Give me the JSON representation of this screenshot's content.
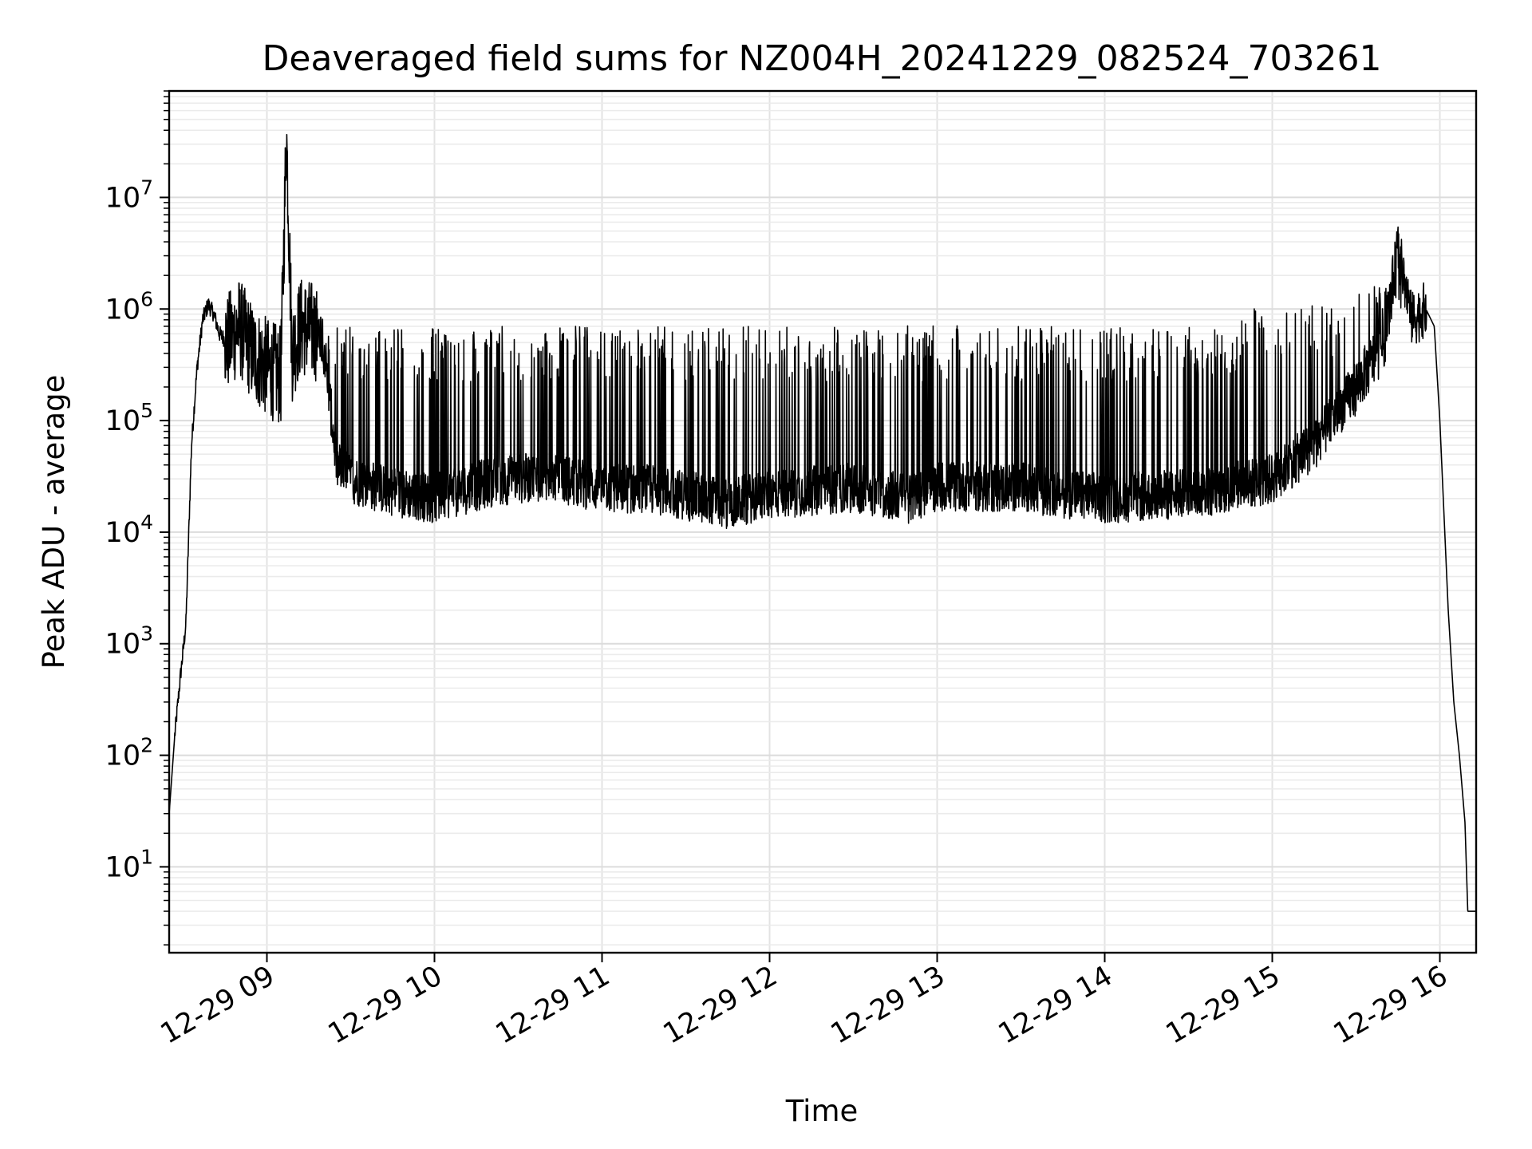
{
  "chart_data": {
    "type": "line",
    "title": "Deaveraged field sums for NZ004H_20241229_082524_703261",
    "xlabel": "Time",
    "ylabel": "Peak ADU - average",
    "yscale": "log",
    "grid": true,
    "xlim": [
      "12-29 08:25",
      "12-29 16:13"
    ],
    "ylim": [
      1.7,
      90000000
    ],
    "x_ticks": [
      {
        "label": "12-29 09",
        "hour": 9
      },
      {
        "label": "12-29 10",
        "hour": 10
      },
      {
        "label": "12-29 11",
        "hour": 11
      },
      {
        "label": "12-29 12",
        "hour": 12
      },
      {
        "label": "12-29 13",
        "hour": 13
      },
      {
        "label": "12-29 14",
        "hour": 14
      },
      {
        "label": "12-29 15",
        "hour": 15
      },
      {
        "label": "12-29 16",
        "hour": 16
      }
    ],
    "y_ticks": [
      {
        "base": "10",
        "exp": "1",
        "value": 10
      },
      {
        "base": "10",
        "exp": "2",
        "value": 100
      },
      {
        "base": "10",
        "exp": "3",
        "value": 1000
      },
      {
        "base": "10",
        "exp": "4",
        "value": 10000
      },
      {
        "base": "10",
        "exp": "5",
        "value": 100000
      },
      {
        "base": "10",
        "exp": "6",
        "value": 1000000
      },
      {
        "base": "10",
        "exp": "7",
        "value": 10000000
      }
    ],
    "series_color": "#000000",
    "series": [
      {
        "x": [
          "12-29 08:25",
          "12-29 08:27",
          "12-29 08:29",
          "12-29 08:31",
          "12-29 08:33",
          "12-29 08:35",
          "12-29 08:37",
          "12-29 08:39",
          "12-29 08:41",
          "12-29 08:43",
          "12-29 08:46",
          "12-29 08:50",
          "12-29 08:55",
          "12-29 09:00",
          "12-29 09:05",
          "12-29 09:07",
          "12-29 09:09",
          "12-29 09:12",
          "12-29 09:20",
          "12-29 09:25",
          "12-29 09:30",
          "12-29 09:40",
          "12-29 09:50",
          "12-29 10:00",
          "12-29 10:20",
          "12-29 10:40",
          "12-29 11:00",
          "12-29 11:20",
          "12-29 11:45",
          "12-29 12:00",
          "12-29 12:30",
          "12-29 12:50",
          "12-29 13:00",
          "12-29 13:30",
          "12-29 14:00",
          "12-29 14:30",
          "12-29 14:45",
          "12-29 15:00",
          "12-29 15:15",
          "12-29 15:30",
          "12-29 15:40",
          "12-29 15:45",
          "12-29 15:50",
          "12-29 15:55",
          "12-29 15:58",
          "12-29 16:00",
          "12-29 16:03",
          "12-29 16:05",
          "12-29 16:07",
          "12-29 16:09",
          "12-29 16:10",
          "12-29 16:13"
        ],
        "values": [
          30,
          150,
          500,
          1500,
          60000,
          300000,
          800000,
          1100000,
          900000,
          600000,
          500000,
          700000,
          400000,
          300000,
          250000,
          40000000,
          400000,
          700000,
          600000,
          40000,
          30000,
          25000,
          22000,
          20000,
          28000,
          32000,
          25000,
          24000,
          18000,
          22000,
          25000,
          20000,
          26000,
          25000,
          20000,
          22000,
          25000,
          30000,
          60000,
          200000,
          500000,
          3500000,
          800000,
          1000000,
          700000,
          100000,
          2000,
          300,
          100,
          25,
          4,
          4
        ]
      }
    ]
  }
}
